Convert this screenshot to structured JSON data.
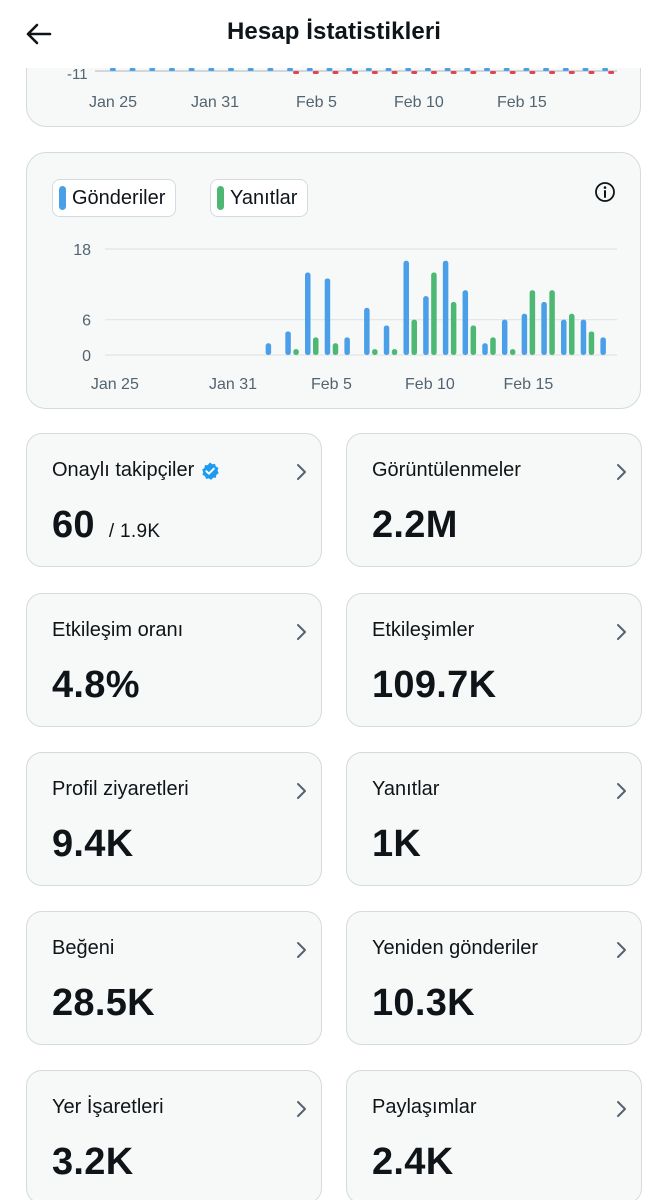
{
  "header": {
    "title": "Hesap İstatistikleri",
    "back_icon": "arrow-left-icon"
  },
  "top_chart": {
    "y_tick": "-11",
    "x_labels": [
      "Jan 25",
      "Jan 31",
      "Feb 5",
      "Feb 10",
      "Feb 15"
    ]
  },
  "posts_chart": {
    "legend": {
      "posts": "Gönderiler",
      "replies": "Yanıtlar"
    },
    "info_icon": "info-icon"
  },
  "chart_data": {
    "type": "bar",
    "title": "",
    "xlabel": "",
    "ylabel": "",
    "x_tick_labels": [
      "Jan 25",
      "Jan 31",
      "Feb 5",
      "Feb 10",
      "Feb 15"
    ],
    "y_tick_labels": [
      "18",
      "6",
      "0"
    ],
    "ylim": [
      0,
      18
    ],
    "grid": true,
    "legend_position": "top-left",
    "categories": [
      "Jan 25",
      "Jan 26",
      "Jan 27",
      "Jan 28",
      "Jan 29",
      "Jan 30",
      "Jan 31",
      "Feb 1",
      "Feb 2",
      "Feb 3",
      "Feb 4",
      "Feb 5",
      "Feb 6",
      "Feb 7",
      "Feb 8",
      "Feb 9",
      "Feb 10",
      "Feb 11",
      "Feb 12",
      "Feb 13",
      "Feb 14",
      "Feb 15",
      "Feb 16",
      "Feb 17",
      "Feb 18",
      "Feb 19"
    ],
    "series": [
      {
        "name": "Gönderiler",
        "color": "#4a9fe8",
        "values": [
          0,
          0,
          0,
          0,
          0,
          0,
          0,
          0,
          2,
          4,
          14,
          13,
          3,
          8,
          5,
          16,
          10,
          16,
          11,
          2,
          6,
          7,
          9,
          6,
          6,
          3
        ]
      },
      {
        "name": "Yanıtlar",
        "color": "#4cb874",
        "values": [
          0,
          0,
          0,
          0,
          0,
          0,
          0,
          0,
          0,
          1,
          3,
          2,
          0,
          1,
          1,
          6,
          14,
          9,
          5,
          3,
          1,
          11,
          11,
          7,
          4,
          0
        ]
      }
    ]
  },
  "tiles": [
    {
      "label": "Onaylı takipçiler",
      "value": "60",
      "sub": "/ 1.9K",
      "verified_icon": "verified-badge-icon"
    },
    {
      "label": "Görüntülenmeler",
      "value": "2.2M"
    },
    {
      "label": "Etkileşim oranı",
      "value": "4.8%"
    },
    {
      "label": "Etkileşimler",
      "value": "109.7K"
    },
    {
      "label": "Profil ziyaretleri",
      "value": "9.4K"
    },
    {
      "label": "Yanıtlar",
      "value": "1K"
    },
    {
      "label": "Beğeni",
      "value": "28.5K"
    },
    {
      "label": "Yeniden gönderiler",
      "value": "10.3K"
    },
    {
      "label": "Yer İşaretleri",
      "value": "3.2K"
    },
    {
      "label": "Paylaşımlar",
      "value": "2.4K"
    }
  ],
  "colors": {
    "posts": "#4a9fe8",
    "replies": "#4cb874",
    "negative": "#e0454f",
    "accent": "#1d9bf0"
  }
}
